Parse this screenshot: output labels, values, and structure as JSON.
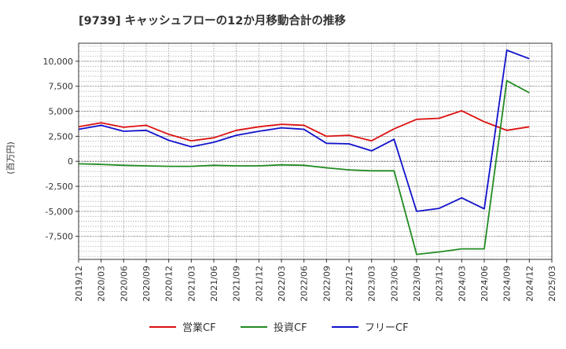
{
  "chart_data": {
    "type": "line",
    "title": "[9739]  キャッシュフローの12か月移動合計の推移",
    "ylabel": "(百万円)",
    "xlabel": "",
    "ylim": [
      -9800,
      11800
    ],
    "y_ticks": [
      10000,
      7500,
      5000,
      2500,
      0,
      -2500,
      -5000,
      -7500
    ],
    "y_tick_labels": [
      "10,000",
      "7,500",
      "5,000",
      "2,500",
      "0",
      "-2,500",
      "-5,000",
      "-7,500"
    ],
    "x_tick_labels": [
      "2019/12",
      "2020/03",
      "2020/06",
      "2020/09",
      "2020/12",
      "2021/03",
      "2021/06",
      "2021/09",
      "2021/12",
      "2022/03",
      "2022/06",
      "2022/09",
      "2022/12",
      "2023/03",
      "2023/06",
      "2023/09",
      "2023/12",
      "2024/03",
      "2024/06",
      "2024/09",
      "2024/12",
      "2025/03"
    ],
    "x": [
      "2019/12",
      "2020/03",
      "2020/06",
      "2020/09",
      "2020/12",
      "2021/03",
      "2021/06",
      "2021/09",
      "2021/12",
      "2022/03",
      "2022/06",
      "2022/09",
      "2022/12",
      "2023/03",
      "2023/06",
      "2023/09",
      "2023/12",
      "2024/03",
      "2024/06",
      "2024/09",
      "2024/12"
    ],
    "grid": true,
    "legend_position": "bottom",
    "series": [
      {
        "name": "営業CF",
        "color": "#dd1111",
        "values": [
          3450,
          3850,
          3400,
          3600,
          2700,
          2050,
          2350,
          3100,
          3450,
          3700,
          3600,
          2500,
          2600,
          2050,
          3250,
          4200,
          4300,
          5050,
          3950,
          3100,
          3450
        ]
      },
      {
        "name": "投資CF",
        "color": "#228b22",
        "values": [
          -250,
          -300,
          -400,
          -450,
          -500,
          -500,
          -400,
          -450,
          -450,
          -350,
          -400,
          -650,
          -850,
          -950,
          -950,
          -9300,
          -9050,
          -8750,
          -8750,
          8050,
          6850
        ]
      },
      {
        "name": "フリーCF",
        "color": "#1111cc",
        "values": [
          3200,
          3600,
          3000,
          3100,
          2100,
          1450,
          1900,
          2600,
          3000,
          3350,
          3200,
          1800,
          1750,
          1050,
          2200,
          -5000,
          -4700,
          -3650,
          -4750,
          11100,
          10250
        ]
      }
    ]
  }
}
